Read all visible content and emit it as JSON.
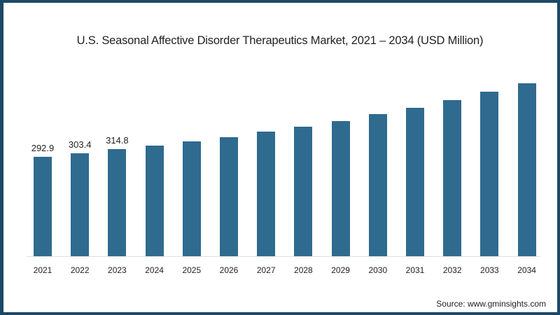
{
  "chart_data": {
    "type": "bar",
    "title": "U.S. Seasonal Affective Disorder Therapeutics Market, 2021 – 2034 (USD Million)",
    "xlabel": "",
    "ylabel": "USD Million",
    "categories": [
      "2021",
      "2022",
      "2023",
      "2024",
      "2025",
      "2026",
      "2027",
      "2028",
      "2029",
      "2030",
      "2031",
      "2032",
      "2033",
      "2034"
    ],
    "values": [
      292.9,
      303.4,
      314.8,
      326,
      338,
      351,
      367,
      382,
      398,
      419,
      437,
      460,
      485,
      509
    ],
    "data_labels": {
      "2021": "292.9",
      "2022": "303.4",
      "2023": "314.8"
    },
    "bar_color": "#2f6a8f",
    "grid": false,
    "legend": "none",
    "ylim": [
      0,
      520
    ]
  },
  "header": {
    "title": "U.S. Seasonal Affective Disorder Therapeutics Market, 2021 – 2034 (USD Million)"
  },
  "footer": {
    "source": "Source: www.gminsights.com"
  },
  "colors": {
    "frame": "#1d4866",
    "bar": "#2f6a8f"
  }
}
